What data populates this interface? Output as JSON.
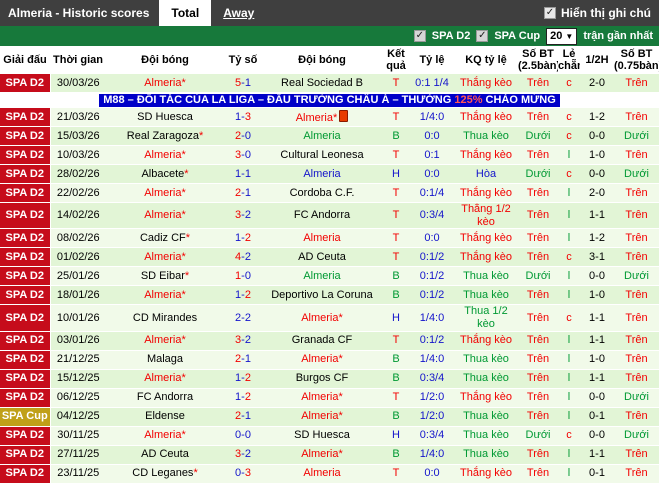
{
  "colors": {
    "red": "#f20000",
    "green": "#009933",
    "blue": "#1414cb",
    "black": "#000000",
    "league_d2": "#c60c1b",
    "league_cup": "#c0a018",
    "ad_highlight": "#ff5555"
  },
  "topbar": {
    "title": "Almeria - Historic scores",
    "tabs": [
      {
        "label": "Total",
        "active": true
      },
      {
        "label": "Away",
        "active": false
      }
    ],
    "note_checkbox": {
      "label": "Hiển thị ghi chú",
      "checked": true,
      "checkmark": "✓"
    }
  },
  "filterbar": {
    "checkboxes": [
      {
        "label": "SPA D2",
        "checked": true,
        "checkmark": "✓"
      },
      {
        "label": "SPA Cup",
        "checked": true,
        "checkmark": "✓"
      }
    ],
    "count_select": {
      "value": "20",
      "chevron": "▼"
    },
    "suffix": "trận gần nhất"
  },
  "table": {
    "headers": [
      "Giải đấu",
      "Thời gian",
      "Đội bóng",
      "Tỷ số",
      "Đội bóng",
      "Kết quả",
      "Tỷ lệ",
      "KQ tỷ lệ",
      "Số BT (2.5bàn)",
      "Lẻ chẵn",
      "1/2H",
      "Số BT (0.75bàn)"
    ],
    "ad": {
      "after_row": 1,
      "parts": [
        "M88 – ĐỐI TÁC CỦA LA LIGA – ĐẤU TRƯỜNG CHÂU Á – THƯỞNG ",
        "125%",
        " CHÀO MỪNG"
      ]
    },
    "rows": [
      {
        "league": "SPA D2",
        "league_type": "d2",
        "date": "30/03/26",
        "home": {
          "name": "Almeria",
          "star": true,
          "color": "red"
        },
        "score": {
          "h": "5",
          "a": "1",
          "hc": "red",
          "ac": "blue"
        },
        "away": {
          "name": "Real Sociedad B",
          "star": false,
          "color": "black"
        },
        "result": {
          "t": "T",
          "c": "red"
        },
        "odds": "0:1 1/4",
        "kq": {
          "t": "Thắng kèo",
          "c": "red"
        },
        "bt25": {
          "t": "Trên",
          "c": "red"
        },
        "le": {
          "t": "c",
          "c": "red"
        },
        "half": "2-0",
        "bt075": {
          "t": "Trên",
          "c": "red"
        }
      },
      {
        "league": "SPA D2",
        "league_type": "d2",
        "date": "21/03/26",
        "home": {
          "name": "SD Huesca",
          "star": false,
          "color": "black"
        },
        "score": {
          "h": "1",
          "a": "3",
          "hc": "blue",
          "ac": "red"
        },
        "away": {
          "name": "Almeria",
          "star": true,
          "color": "red",
          "redcard": true
        },
        "result": {
          "t": "T",
          "c": "red"
        },
        "odds": "1/4:0",
        "kq": {
          "t": "Thắng kèo",
          "c": "red"
        },
        "bt25": {
          "t": "Trên",
          "c": "red"
        },
        "le": {
          "t": "c",
          "c": "red"
        },
        "half": "1-2",
        "bt075": {
          "t": "Trên",
          "c": "red"
        }
      },
      {
        "league": "SPA D2",
        "league_type": "d2",
        "date": "15/03/26",
        "home": {
          "name": "Real Zaragoza",
          "star": true,
          "color": "black"
        },
        "score": {
          "h": "2",
          "a": "0",
          "hc": "red",
          "ac": "blue"
        },
        "away": {
          "name": "Almeria",
          "star": false,
          "color": "green"
        },
        "result": {
          "t": "B",
          "c": "green"
        },
        "odds": "0:0",
        "kq": {
          "t": "Thua kèo",
          "c": "green"
        },
        "bt25": {
          "t": "Dưới",
          "c": "green"
        },
        "le": {
          "t": "c",
          "c": "red"
        },
        "half": "0-0",
        "bt075": {
          "t": "Dưới",
          "c": "green"
        }
      },
      {
        "league": "SPA D2",
        "league_type": "d2",
        "date": "10/03/26",
        "home": {
          "name": "Almeria",
          "star": true,
          "color": "red"
        },
        "score": {
          "h": "3",
          "a": "0",
          "hc": "red",
          "ac": "blue"
        },
        "away": {
          "name": "Cultural Leonesa",
          "star": false,
          "color": "black"
        },
        "result": {
          "t": "T",
          "c": "red"
        },
        "odds": "0:1",
        "kq": {
          "t": "Thắng kèo",
          "c": "red"
        },
        "bt25": {
          "t": "Trên",
          "c": "red"
        },
        "le": {
          "t": "l",
          "c": "green"
        },
        "half": "1-0",
        "bt075": {
          "t": "Trên",
          "c": "red"
        }
      },
      {
        "league": "SPA D2",
        "league_type": "d2",
        "date": "28/02/26",
        "home": {
          "name": "Albacete",
          "star": true,
          "color": "black"
        },
        "score": {
          "h": "1",
          "a": "1",
          "hc": "blue",
          "ac": "blue"
        },
        "away": {
          "name": "Almeria",
          "star": false,
          "color": "blue"
        },
        "result": {
          "t": "H",
          "c": "blue"
        },
        "odds": "0:0",
        "kq": {
          "t": "Hòa",
          "c": "blue"
        },
        "bt25": {
          "t": "Dưới",
          "c": "green"
        },
        "le": {
          "t": "c",
          "c": "red"
        },
        "half": "0-0",
        "bt075": {
          "t": "Dưới",
          "c": "green"
        }
      },
      {
        "league": "SPA D2",
        "league_type": "d2",
        "date": "22/02/26",
        "home": {
          "name": "Almeria",
          "star": true,
          "color": "red"
        },
        "score": {
          "h": "2",
          "a": "1",
          "hc": "red",
          "ac": "blue"
        },
        "away": {
          "name": "Cordoba C.F.",
          "star": false,
          "color": "black"
        },
        "result": {
          "t": "T",
          "c": "red"
        },
        "odds": "0:1/4",
        "kq": {
          "t": "Thắng kèo",
          "c": "red"
        },
        "bt25": {
          "t": "Trên",
          "c": "red"
        },
        "le": {
          "t": "l",
          "c": "green"
        },
        "half": "2-0",
        "bt075": {
          "t": "Trên",
          "c": "red"
        }
      },
      {
        "league": "SPA D2",
        "league_type": "d2",
        "date": "14/02/26",
        "home": {
          "name": "Almeria",
          "star": true,
          "color": "red"
        },
        "score": {
          "h": "3",
          "a": "2",
          "hc": "red",
          "ac": "blue"
        },
        "away": {
          "name": "FC Andorra",
          "star": false,
          "color": "black"
        },
        "result": {
          "t": "T",
          "c": "red"
        },
        "odds": "0:3/4",
        "kq": {
          "t": "Thắng 1/2 kèo",
          "c": "red"
        },
        "bt25": {
          "t": "Trên",
          "c": "red"
        },
        "le": {
          "t": "l",
          "c": "green"
        },
        "half": "1-1",
        "bt075": {
          "t": "Trên",
          "c": "red"
        }
      },
      {
        "league": "SPA D2",
        "league_type": "d2",
        "date": "08/02/26",
        "home": {
          "name": "Cadiz CF",
          "star": true,
          "color": "black"
        },
        "score": {
          "h": "1",
          "a": "2",
          "hc": "blue",
          "ac": "red"
        },
        "away": {
          "name": "Almeria",
          "star": false,
          "color": "red"
        },
        "result": {
          "t": "T",
          "c": "red"
        },
        "odds": "0:0",
        "kq": {
          "t": "Thắng kèo",
          "c": "red"
        },
        "bt25": {
          "t": "Trên",
          "c": "red"
        },
        "le": {
          "t": "l",
          "c": "green"
        },
        "half": "1-2",
        "bt075": {
          "t": "Trên",
          "c": "red"
        }
      },
      {
        "league": "SPA D2",
        "league_type": "d2",
        "date": "01/02/26",
        "home": {
          "name": "Almeria",
          "star": true,
          "color": "red"
        },
        "score": {
          "h": "4",
          "a": "2",
          "hc": "red",
          "ac": "blue"
        },
        "away": {
          "name": "AD Ceuta",
          "star": false,
          "color": "black"
        },
        "result": {
          "t": "T",
          "c": "red"
        },
        "odds": "0:1/2",
        "kq": {
          "t": "Thắng kèo",
          "c": "red"
        },
        "bt25": {
          "t": "Trên",
          "c": "red"
        },
        "le": {
          "t": "c",
          "c": "red"
        },
        "half": "3-1",
        "bt075": {
          "t": "Trên",
          "c": "red"
        }
      },
      {
        "league": "SPA D2",
        "league_type": "d2",
        "date": "25/01/26",
        "home": {
          "name": "SD Eibar",
          "star": true,
          "color": "black"
        },
        "score": {
          "h": "1",
          "a": "0",
          "hc": "red",
          "ac": "blue"
        },
        "away": {
          "name": "Almeria",
          "star": false,
          "color": "green"
        },
        "result": {
          "t": "B",
          "c": "green"
        },
        "odds": "0:1/2",
        "kq": {
          "t": "Thua kèo",
          "c": "green"
        },
        "bt25": {
          "t": "Dưới",
          "c": "green"
        },
        "le": {
          "t": "l",
          "c": "green"
        },
        "half": "0-0",
        "bt075": {
          "t": "Dưới",
          "c": "green"
        }
      },
      {
        "league": "SPA D2",
        "league_type": "d2",
        "date": "18/01/26",
        "home": {
          "name": "Almeria",
          "star": true,
          "color": "red"
        },
        "score": {
          "h": "1",
          "a": "2",
          "hc": "blue",
          "ac": "red"
        },
        "away": {
          "name": "Deportivo La Coruna",
          "star": false,
          "color": "black"
        },
        "result": {
          "t": "B",
          "c": "green"
        },
        "odds": "0:1/2",
        "kq": {
          "t": "Thua kèo",
          "c": "green"
        },
        "bt25": {
          "t": "Trên",
          "c": "red"
        },
        "le": {
          "t": "l",
          "c": "green"
        },
        "half": "1-0",
        "bt075": {
          "t": "Trên",
          "c": "red"
        }
      },
      {
        "league": "SPA D2",
        "league_type": "d2",
        "date": "10/01/26",
        "home": {
          "name": "CD Mirandes",
          "star": false,
          "color": "black"
        },
        "score": {
          "h": "2",
          "a": "2",
          "hc": "blue",
          "ac": "blue"
        },
        "away": {
          "name": "Almeria",
          "star": true,
          "color": "red"
        },
        "result": {
          "t": "H",
          "c": "blue"
        },
        "odds": "1/4:0",
        "kq": {
          "t": "Thua 1/2 kèo",
          "c": "green"
        },
        "bt25": {
          "t": "Trên",
          "c": "red"
        },
        "le": {
          "t": "c",
          "c": "red"
        },
        "half": "1-1",
        "bt075": {
          "t": "Trên",
          "c": "red"
        }
      },
      {
        "league": "SPA D2",
        "league_type": "d2",
        "date": "03/01/26",
        "home": {
          "name": "Almeria",
          "star": true,
          "color": "red"
        },
        "score": {
          "h": "3",
          "a": "2",
          "hc": "red",
          "ac": "blue"
        },
        "away": {
          "name": "Granada CF",
          "star": false,
          "color": "black"
        },
        "result": {
          "t": "T",
          "c": "red"
        },
        "odds": "0:1/2",
        "kq": {
          "t": "Thắng kèo",
          "c": "red"
        },
        "bt25": {
          "t": "Trên",
          "c": "red"
        },
        "le": {
          "t": "l",
          "c": "green"
        },
        "half": "1-1",
        "bt075": {
          "t": "Trên",
          "c": "red"
        }
      },
      {
        "league": "SPA D2",
        "league_type": "d2",
        "date": "21/12/25",
        "home": {
          "name": "Malaga",
          "star": false,
          "color": "black"
        },
        "score": {
          "h": "2",
          "a": "1",
          "hc": "red",
          "ac": "blue"
        },
        "away": {
          "name": "Almeria",
          "star": true,
          "color": "red"
        },
        "result": {
          "t": "B",
          "c": "green"
        },
        "odds": "1/4:0",
        "kq": {
          "t": "Thua kèo",
          "c": "green"
        },
        "bt25": {
          "t": "Trên",
          "c": "red"
        },
        "le": {
          "t": "l",
          "c": "green"
        },
        "half": "1-0",
        "bt075": {
          "t": "Trên",
          "c": "red"
        }
      },
      {
        "league": "SPA D2",
        "league_type": "d2",
        "date": "15/12/25",
        "home": {
          "name": "Almeria",
          "star": true,
          "color": "red"
        },
        "score": {
          "h": "1",
          "a": "2",
          "hc": "blue",
          "ac": "red"
        },
        "away": {
          "name": "Burgos CF",
          "star": false,
          "color": "black"
        },
        "result": {
          "t": "B",
          "c": "green"
        },
        "odds": "0:3/4",
        "kq": {
          "t": "Thua kèo",
          "c": "green"
        },
        "bt25": {
          "t": "Trên",
          "c": "red"
        },
        "le": {
          "t": "l",
          "c": "green"
        },
        "half": "1-1",
        "bt075": {
          "t": "Trên",
          "c": "red"
        }
      },
      {
        "league": "SPA D2",
        "league_type": "d2",
        "date": "06/12/25",
        "home": {
          "name": "FC Andorra",
          "star": false,
          "color": "black"
        },
        "score": {
          "h": "1",
          "a": "2",
          "hc": "blue",
          "ac": "red"
        },
        "away": {
          "name": "Almeria",
          "star": true,
          "color": "red"
        },
        "result": {
          "t": "T",
          "c": "red"
        },
        "odds": "1/2:0",
        "kq": {
          "t": "Thắng kèo",
          "c": "red"
        },
        "bt25": {
          "t": "Trên",
          "c": "red"
        },
        "le": {
          "t": "l",
          "c": "green"
        },
        "half": "0-0",
        "bt075": {
          "t": "Dưới",
          "c": "green"
        }
      },
      {
        "league": "SPA Cup",
        "league_type": "cup",
        "date": "04/12/25",
        "home": {
          "name": "Eldense",
          "star": false,
          "color": "black"
        },
        "score": {
          "h": "2",
          "a": "1",
          "hc": "red",
          "ac": "blue"
        },
        "away": {
          "name": "Almeria",
          "star": true,
          "color": "red"
        },
        "result": {
          "t": "B",
          "c": "green"
        },
        "odds": "1/2:0",
        "kq": {
          "t": "Thua kèo",
          "c": "green"
        },
        "bt25": {
          "t": "Trên",
          "c": "red"
        },
        "le": {
          "t": "l",
          "c": "green"
        },
        "half": "0-1",
        "bt075": {
          "t": "Trên",
          "c": "red"
        }
      },
      {
        "league": "SPA D2",
        "league_type": "d2",
        "date": "30/11/25",
        "home": {
          "name": "Almeria",
          "star": true,
          "color": "red"
        },
        "score": {
          "h": "0",
          "a": "0",
          "hc": "blue",
          "ac": "blue"
        },
        "away": {
          "name": "SD Huesca",
          "star": false,
          "color": "black"
        },
        "result": {
          "t": "H",
          "c": "blue"
        },
        "odds": "0:3/4",
        "kq": {
          "t": "Thua kèo",
          "c": "green"
        },
        "bt25": {
          "t": "Dưới",
          "c": "green"
        },
        "le": {
          "t": "c",
          "c": "red"
        },
        "half": "0-0",
        "bt075": {
          "t": "Dưới",
          "c": "green"
        }
      },
      {
        "league": "SPA D2",
        "league_type": "d2",
        "date": "27/11/25",
        "home": {
          "name": "AD Ceuta",
          "star": false,
          "color": "black"
        },
        "score": {
          "h": "3",
          "a": "2",
          "hc": "red",
          "ac": "blue"
        },
        "away": {
          "name": "Almeria",
          "star": true,
          "color": "red"
        },
        "result": {
          "t": "B",
          "c": "green"
        },
        "odds": "1/4:0",
        "kq": {
          "t": "Thua kèo",
          "c": "green"
        },
        "bt25": {
          "t": "Trên",
          "c": "red"
        },
        "le": {
          "t": "l",
          "c": "green"
        },
        "half": "1-1",
        "bt075": {
          "t": "Trên",
          "c": "red"
        }
      },
      {
        "league": "SPA D2",
        "league_type": "d2",
        "date": "23/11/25",
        "home": {
          "name": "CD Leganes",
          "star": true,
          "color": "black"
        },
        "score": {
          "h": "0",
          "a": "3",
          "hc": "blue",
          "ac": "red"
        },
        "away": {
          "name": "Almeria",
          "star": false,
          "color": "red"
        },
        "result": {
          "t": "T",
          "c": "red"
        },
        "odds": "0:0",
        "kq": {
          "t": "Thắng kèo",
          "c": "red"
        },
        "bt25": {
          "t": "Trên",
          "c": "red"
        },
        "le": {
          "t": "l",
          "c": "green"
        },
        "half": "0-1",
        "bt075": {
          "t": "Trên",
          "c": "red"
        }
      }
    ]
  }
}
